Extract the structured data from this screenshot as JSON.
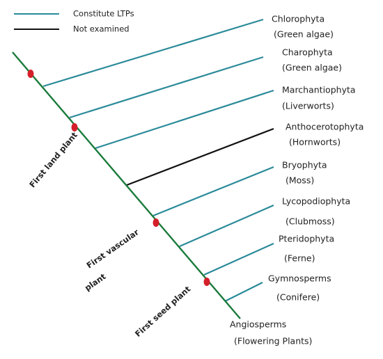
{
  "legend": [
    {
      "label": "Constitute LTPs"
    },
    {
      "label": "Not examined"
    }
  ],
  "taxa": [
    {
      "name": "Chlorophyta",
      "common": "(Green algae)"
    },
    {
      "name": "Charophyta",
      "common": "(Green algae)"
    },
    {
      "name": "Marchantiophyta",
      "common": "(Liverworts)"
    },
    {
      "name": "Anthocerotophyta",
      "common": "(Hornworts)"
    },
    {
      "name": "Bryophyta",
      "common": "(Moss)"
    },
    {
      "name": "Lycopodiophyta",
      "common": "(Clubmoss)"
    },
    {
      "name": "Pteridophyta",
      "common": "(Ferne)"
    },
    {
      "name": "Gymnosperms",
      "common": "(Conifere)"
    },
    {
      "name": "Angiosperms",
      "common": "(Flowering Plants)"
    }
  ],
  "milestones": [
    "First land plant",
    "First vascular",
    "plant",
    "First seed plant"
  ]
}
